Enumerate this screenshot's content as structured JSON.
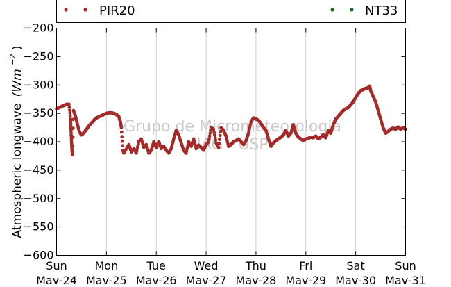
{
  "chart_data": {
    "type": "scatter",
    "ylabel_text": "Atmospheric longwave",
    "ylabel_unit": "(Wm",
    "ylabel_exp": "−2",
    "ylabel_close": ")",
    "ylim": [
      -600,
      -200
    ],
    "yticks": [
      -200,
      -250,
      -300,
      -350,
      -400,
      -450,
      -500,
      -550,
      -600
    ],
    "ytick_labels": [
      "−200",
      "−250",
      "−300",
      "−350",
      "−400",
      "−450",
      "−500",
      "−550",
      "−600"
    ],
    "xlim": [
      0,
      7
    ],
    "xticks": [
      0,
      1,
      2,
      3,
      4,
      5,
      6,
      7
    ],
    "xtick_labels": [
      [
        "Sun",
        "Mav-24"
      ],
      [
        "Mon",
        "Mav-25"
      ],
      [
        "Tue",
        "Mav-26"
      ],
      [
        "Wed",
        "Mav-27"
      ],
      [
        "Thu",
        "Mav-28"
      ],
      [
        "Fri",
        "Mav-29"
      ],
      [
        "Sat",
        "Mav-30"
      ],
      [
        "Sun",
        "Mav-31"
      ]
    ],
    "grid": "vertical",
    "legend": "top",
    "watermark": [
      "Grupo de Micrometeorologia",
      "IAG - USP"
    ],
    "series": [
      {
        "name": "PIR20",
        "color": "#a52a2a",
        "points": [
          [
            0.0,
            -342
          ],
          [
            0.05,
            -340
          ],
          [
            0.1,
            -338
          ],
          [
            0.15,
            -336
          ],
          [
            0.2,
            -334
          ],
          [
            0.25,
            -334
          ],
          [
            0.28,
            -360
          ],
          [
            0.29,
            -380
          ],
          [
            0.3,
            -400
          ],
          [
            0.31,
            -415
          ],
          [
            0.32,
            -423
          ],
          [
            0.34,
            -345
          ],
          [
            0.38,
            -355
          ],
          [
            0.42,
            -370
          ],
          [
            0.46,
            -383
          ],
          [
            0.5,
            -388
          ],
          [
            0.55,
            -384
          ],
          [
            0.6,
            -378
          ],
          [
            0.65,
            -372
          ],
          [
            0.7,
            -367
          ],
          [
            0.75,
            -362
          ],
          [
            0.8,
            -358
          ],
          [
            0.85,
            -356
          ],
          [
            0.9,
            -354
          ],
          [
            0.95,
            -352
          ],
          [
            1.0,
            -350
          ],
          [
            1.05,
            -349
          ],
          [
            1.1,
            -349
          ],
          [
            1.15,
            -350
          ],
          [
            1.2,
            -352
          ],
          [
            1.25,
            -356
          ],
          [
            1.28,
            -365
          ],
          [
            1.3,
            -375
          ],
          [
            1.33,
            -415
          ],
          [
            1.35,
            -420
          ],
          [
            1.45,
            -405
          ],
          [
            1.5,
            -418
          ],
          [
            1.55,
            -412
          ],
          [
            1.6,
            -420
          ],
          [
            1.65,
            -400
          ],
          [
            1.7,
            -395
          ],
          [
            1.75,
            -410
          ],
          [
            1.8,
            -405
          ],
          [
            1.85,
            -420
          ],
          [
            1.9,
            -415
          ],
          [
            1.95,
            -400
          ],
          [
            2.0,
            -410
          ],
          [
            2.05,
            -400
          ],
          [
            2.1,
            -412
          ],
          [
            2.15,
            -408
          ],
          [
            2.2,
            -415
          ],
          [
            2.25,
            -420
          ],
          [
            2.3,
            -412
          ],
          [
            2.35,
            -395
          ],
          [
            2.4,
            -380
          ],
          [
            2.45,
            -388
          ],
          [
            2.5,
            -402
          ],
          [
            2.55,
            -415
          ],
          [
            2.6,
            -420
          ],
          [
            2.65,
            -400
          ],
          [
            2.7,
            -408
          ],
          [
            2.75,
            -395
          ],
          [
            2.8,
            -412
          ],
          [
            2.85,
            -406
          ],
          [
            2.9,
            -410
          ],
          [
            2.95,
            -415
          ],
          [
            3.0,
            -405
          ],
          [
            3.05,
            -400
          ],
          [
            3.1,
            -375
          ],
          [
            3.15,
            -378
          ],
          [
            3.2,
            -402
          ],
          [
            3.25,
            -410
          ],
          [
            3.3,
            -375
          ],
          [
            3.35,
            -380
          ],
          [
            3.4,
            -390
          ],
          [
            3.45,
            -408
          ],
          [
            3.5,
            -405
          ],
          [
            3.55,
            -400
          ],
          [
            3.6,
            -398
          ],
          [
            3.65,
            -395
          ],
          [
            3.7,
            -400
          ],
          [
            3.75,
            -405
          ],
          [
            3.8,
            -398
          ],
          [
            3.85,
            -385
          ],
          [
            3.9,
            -365
          ],
          [
            3.95,
            -358
          ],
          [
            4.0,
            -360
          ],
          [
            4.05,
            -362
          ],
          [
            4.1,
            -368
          ],
          [
            4.15,
            -375
          ],
          [
            4.2,
            -380
          ],
          [
            4.25,
            -395
          ],
          [
            4.3,
            -408
          ],
          [
            4.35,
            -402
          ],
          [
            4.4,
            -398
          ],
          [
            4.45,
            -395
          ],
          [
            4.5,
            -392
          ],
          [
            4.55,
            -388
          ],
          [
            4.6,
            -380
          ],
          [
            4.65,
            -390
          ],
          [
            4.7,
            -385
          ],
          [
            4.75,
            -370
          ],
          [
            4.8,
            -385
          ],
          [
            4.85,
            -392
          ],
          [
            4.9,
            -395
          ],
          [
            4.95,
            -398
          ],
          [
            5.0,
            -395
          ],
          [
            5.05,
            -394
          ],
          [
            5.1,
            -392
          ],
          [
            5.15,
            -393
          ],
          [
            5.2,
            -390
          ],
          [
            5.25,
            -395
          ],
          [
            5.3,
            -392
          ],
          [
            5.35,
            -388
          ],
          [
            5.4,
            -393
          ],
          [
            5.45,
            -380
          ],
          [
            5.5,
            -385
          ],
          [
            5.55,
            -370
          ],
          [
            5.6,
            -360
          ],
          [
            5.65,
            -355
          ],
          [
            5.7,
            -350
          ],
          [
            5.75,
            -345
          ],
          [
            5.8,
            -342
          ],
          [
            5.85,
            -340
          ],
          [
            5.9,
            -335
          ],
          [
            5.95,
            -330
          ],
          [
            6.0,
            -322
          ],
          [
            6.05,
            -315
          ],
          [
            6.1,
            -310
          ],
          [
            6.15,
            -308
          ],
          [
            6.2,
            -306
          ],
          [
            6.25,
            -305
          ],
          [
            6.28,
            -302
          ],
          [
            6.3,
            -310
          ],
          [
            6.35,
            -320
          ],
          [
            6.4,
            -330
          ],
          [
            6.45,
            -345
          ],
          [
            6.5,
            -360
          ],
          [
            6.55,
            -375
          ],
          [
            6.6,
            -385
          ],
          [
            6.65,
            -382
          ],
          [
            6.7,
            -378
          ],
          [
            6.75,
            -376
          ],
          [
            6.8,
            -378
          ],
          [
            6.85,
            -374
          ],
          [
            6.9,
            -378
          ],
          [
            6.95,
            -375
          ],
          [
            7.0,
            -378
          ]
        ]
      },
      {
        "name": "NT33",
        "color": "#1a6b1a",
        "points": []
      }
    ]
  }
}
